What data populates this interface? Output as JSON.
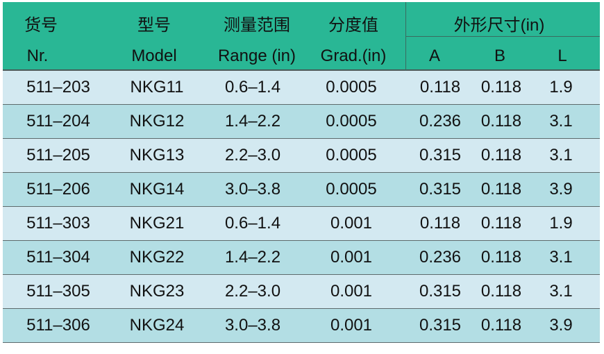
{
  "header": {
    "cn": {
      "nr": "货号",
      "model": "型号",
      "range": "测量范围",
      "grad": "分度值",
      "dims": "外形尺寸(in)"
    },
    "en": {
      "nr": "Nr.",
      "model": "Model",
      "range": "Range (in)",
      "grad": "Grad.(in)",
      "a": "A",
      "b": "B",
      "l": "L"
    }
  },
  "colors": {
    "header": "#29b795",
    "row_odd": "#d3e9f1",
    "row_even": "#b3dee4"
  },
  "rows": [
    [
      "511–203",
      "NKG11",
      "0.6–1.4",
      "0.0005",
      "0.118",
      "0.118",
      "1.9"
    ],
    [
      "511–204",
      "NKG12",
      "1.4–2.2",
      "0.0005",
      "0.236",
      "0.118",
      "3.1"
    ],
    [
      "511–205",
      "NKG13",
      "2.2–3.0",
      "0.0005",
      "0.315",
      "0.118",
      "3.1"
    ],
    [
      "511–206",
      "NKG14",
      "3.0–3.8",
      "0.0005",
      "0.315",
      "0.118",
      "3.9"
    ],
    [
      "511–303",
      "NKG21",
      "0.6–1.4",
      "0.001",
      "0.118",
      "0.118",
      "1.9"
    ],
    [
      "511–304",
      "NKG22",
      "1.4–2.2",
      "0.001",
      "0.236",
      "0.118",
      "3.1"
    ],
    [
      "511–305",
      "NKG23",
      "2.2–3.0",
      "0.001",
      "0.315",
      "0.118",
      "3.1"
    ],
    [
      "511–306",
      "NKG24",
      "3.0–3.8",
      "0.001",
      "0.315",
      "0.118",
      "3.9"
    ]
  ]
}
